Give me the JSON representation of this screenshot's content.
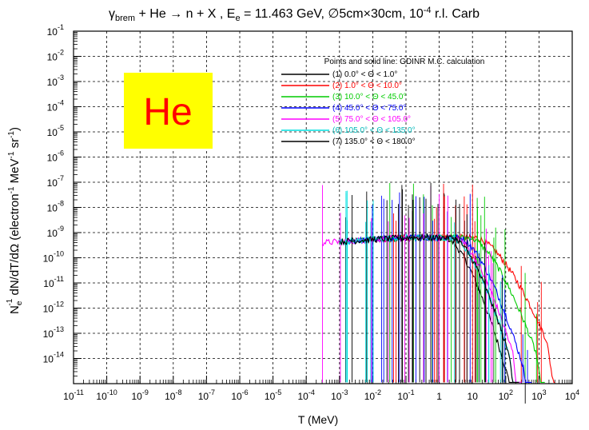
{
  "chart_data": {
    "type": "line",
    "title": {
      "gamma": "γ",
      "gamma_sub": "brem",
      "part1": " + He → n + X , E",
      "e_sub": "e",
      "part2": " = 11.463 GeV, ∅5cm×30cm, 10",
      "part2_sup": "-4",
      "part3": " r.l. Carb"
    },
    "xlabel": "T (MeV)",
    "ylabel": {
      "n": "N",
      "n_sub": "e",
      "n_sup": "-1",
      "a": " dN/dT/dΩ  (electron",
      "a_sup": "-1",
      "b": " MeV",
      "b_sup": "-1",
      "c": " sr",
      "c_sup": "-1",
      "d": ")"
    },
    "xscale": "log",
    "yscale": "log",
    "xlim_exp": [
      -11,
      4
    ],
    "ylim_exp": [
      -15,
      -1
    ],
    "grid": true,
    "legend_placement": "top-right",
    "legend_header": "Points and solid line:  GDINR  M.C. calculation",
    "x_ticks": [
      {
        "base": "10",
        "exp": "-11",
        "plain": ""
      },
      {
        "base": "10",
        "exp": "-10",
        "plain": ""
      },
      {
        "base": "10",
        "exp": "-9",
        "plain": ""
      },
      {
        "base": "10",
        "exp": "-8",
        "plain": ""
      },
      {
        "base": "10",
        "exp": "-7",
        "plain": ""
      },
      {
        "base": "10",
        "exp": "-6",
        "plain": ""
      },
      {
        "base": "10",
        "exp": "-5",
        "plain": ""
      },
      {
        "base": "10",
        "exp": "-4",
        "plain": ""
      },
      {
        "base": "10",
        "exp": "-3",
        "plain": ""
      },
      {
        "base": "10",
        "exp": "-2",
        "plain": ""
      },
      {
        "base": "10",
        "exp": "-1",
        "plain": ""
      },
      {
        "base": "",
        "exp": "",
        "plain": "1"
      },
      {
        "base": "",
        "exp": "",
        "plain": "10"
      },
      {
        "base": "10",
        "exp": "2",
        "plain": ""
      },
      {
        "base": "10",
        "exp": "3",
        "plain": ""
      },
      {
        "base": "10",
        "exp": "4",
        "plain": ""
      }
    ],
    "y_ticks": [
      "-1",
      "-2",
      "-3",
      "-4",
      "-5",
      "-6",
      "-7",
      "-8",
      "-9",
      "-10",
      "-11",
      "-12",
      "-13",
      "-14"
    ],
    "y_tick_base": "10",
    "series": [
      {
        "name": "(1)  0.0° < Θ < 1.0°",
        "color": "#000000",
        "x_range": [
          0.002,
          300
        ],
        "turnover": 1.5,
        "falloff": 2.0,
        "drop": 2.5,
        "spike_region": [
          0.001,
          1000
        ]
      },
      {
        "name": "(2)  1.0° < Θ < 10.0°",
        "color": "#ff0000",
        "x_range": [
          0.02,
          3000
        ],
        "turnover": 12,
        "falloff": 1.2,
        "drop": 1.3,
        "spike_region": [
          0.02,
          3000
        ]
      },
      {
        "name": "(3)  10.0° < Θ < 45.0°",
        "color": "#00cc00",
        "x_range": [
          0.004,
          1500
        ],
        "turnover": 8,
        "falloff": 1.5,
        "drop": 1.6,
        "spike_region": [
          0.004,
          1500
        ]
      },
      {
        "name": "(4)  45.0° < Θ < 75.0°",
        "color": "#0000ff",
        "x_range": [
          0.0015,
          600
        ],
        "turnover": 4,
        "falloff": 1.8,
        "drop": 2.3,
        "spike_region": [
          0.0015,
          600
        ]
      },
      {
        "name": "(5)  75.0° < Θ < 105.0°",
        "color": "#ff00ff",
        "x_range": [
          0.0003,
          300
        ],
        "turnover": 3,
        "falloff": 1.9,
        "drop": 2.6,
        "spike_region": [
          0.0003,
          300
        ]
      },
      {
        "name": "(6)  105.0° < Θ < 135.0°",
        "color": "#00e0e0",
        "x_range": [
          0.001,
          250
        ],
        "turnover": 2.5,
        "falloff": 2.0,
        "drop": 2.7,
        "spike_region": [
          0.001,
          250
        ]
      },
      {
        "name": "(7)  135.0° < Θ < 180.0°",
        "color": "#000000",
        "x_range": [
          0.001,
          250
        ],
        "turnover": 2.5,
        "falloff": 2.0,
        "drop": 2.8,
        "spike_region": [
          0.001,
          250
        ]
      }
    ],
    "plateau_log_y": -9.2,
    "overlay_label": {
      "text": "He",
      "background": "#ffff00",
      "color": "#ff0000"
    }
  }
}
